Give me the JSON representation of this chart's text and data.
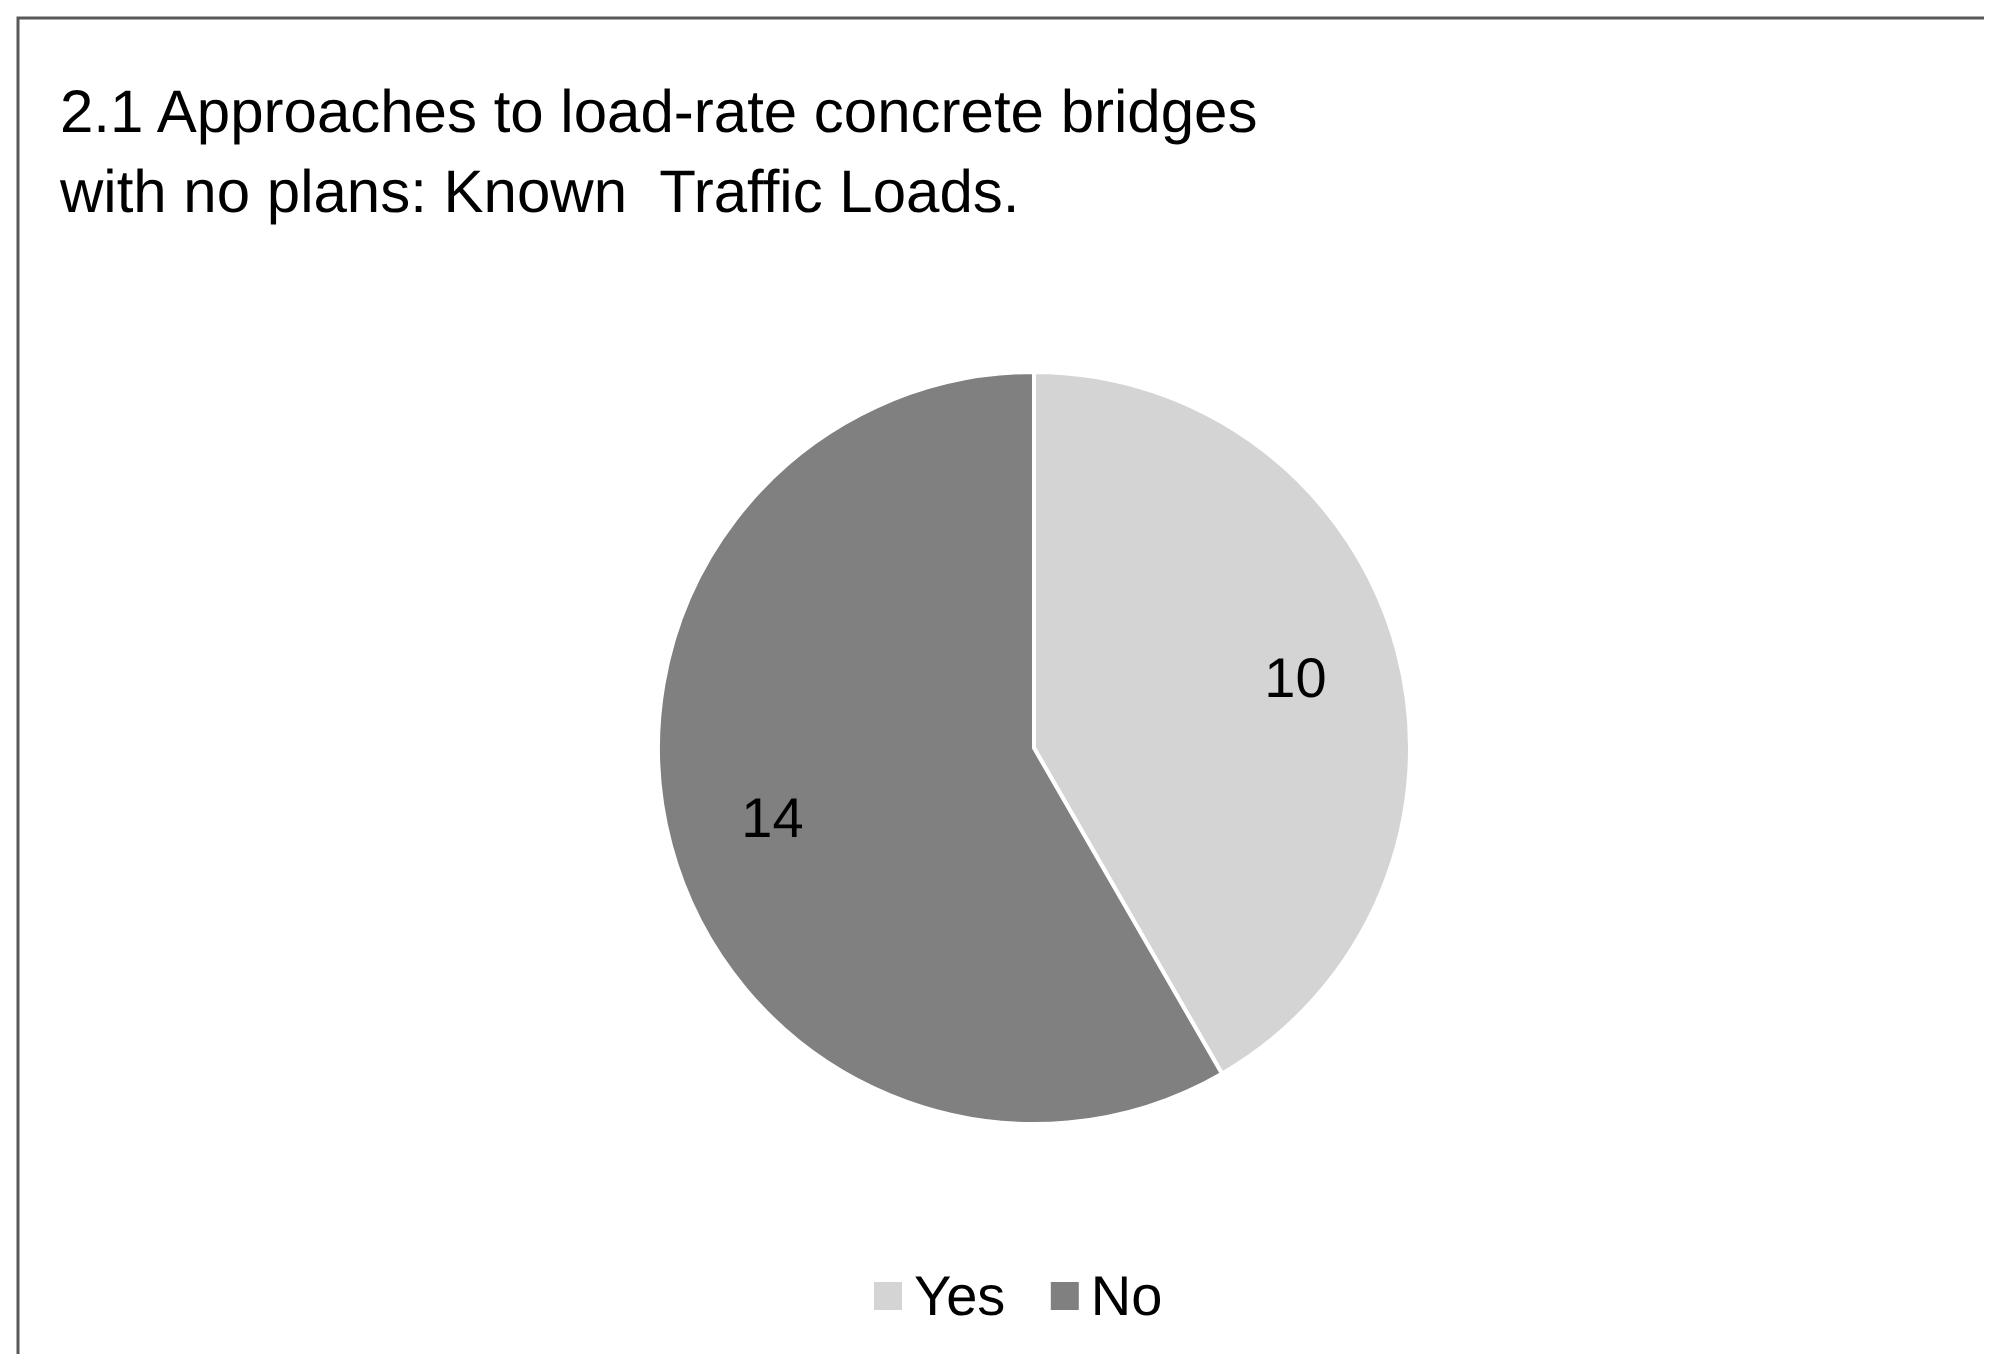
{
  "chart_data": {
    "type": "pie",
    "title": "2.1 Approaches to load-rate concrete bridges with no plans: Known  Traffic Loads.",
    "categories": [
      "Yes",
      "No"
    ],
    "values": [
      10,
      14
    ],
    "colors": [
      "#d4d4d4",
      "#808080"
    ],
    "data_labels": true,
    "legend": "bottom"
  }
}
